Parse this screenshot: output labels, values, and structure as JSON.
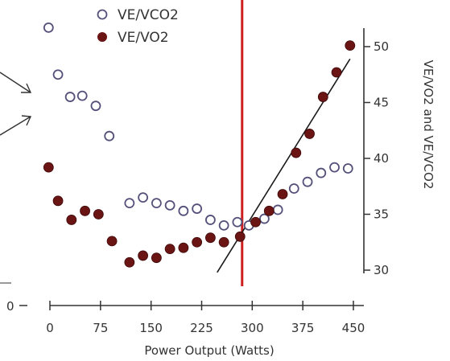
{
  "chart_data": {
    "type": "scatter",
    "title": "",
    "xlabel": "Power Output (Watts)",
    "ylabel": "VE/VO2 and VE/VCO2",
    "xlim": [
      -15,
      470
    ],
    "ylim": [
      28,
      53
    ],
    "x_ticks": [
      0,
      75,
      150,
      225,
      300,
      375,
      450
    ],
    "x_tick_labels": [
      "0",
      "75",
      "150",
      "225",
      "300",
      "375",
      "450"
    ],
    "left_axis_tick_label": "0",
    "y_ticks": [
      30,
      35,
      40,
      45,
      50
    ],
    "y_tick_labels": [
      "30",
      "35",
      "40",
      "45",
      "50"
    ],
    "legend_position": "top",
    "series": [
      {
        "name": "VE/VCO2",
        "marker": "open-circle",
        "color": "#54507a",
        "points": [
          [
            -2,
            51.7
          ],
          [
            12,
            47.5
          ],
          [
            30,
            45.5
          ],
          [
            48,
            45.6
          ],
          [
            68,
            44.7
          ],
          [
            88,
            42
          ],
          [
            118,
            36
          ],
          [
            138,
            36.5
          ],
          [
            158,
            36
          ],
          [
            178,
            35.8
          ],
          [
            198,
            35.3
          ],
          [
            218,
            35.5
          ],
          [
            238,
            34.5
          ],
          [
            258,
            34
          ],
          [
            278,
            34.3
          ],
          [
            295,
            34
          ],
          [
            318,
            34.6
          ],
          [
            338,
            35.4
          ],
          [
            362,
            37.3
          ],
          [
            382,
            37.9
          ],
          [
            402,
            38.7
          ],
          [
            422,
            39.2
          ],
          [
            442,
            39.1
          ]
        ]
      },
      {
        "name": "VE/VO2",
        "marker": "filled-circle",
        "color": "#6b1414",
        "points": [
          [
            -2,
            39.2
          ],
          [
            12,
            36.2
          ],
          [
            32,
            34.5
          ],
          [
            52,
            35.3
          ],
          [
            72,
            35
          ],
          [
            92,
            32.6
          ],
          [
            118,
            30.7
          ],
          [
            138,
            31.3
          ],
          [
            158,
            31.1
          ],
          [
            178,
            31.9
          ],
          [
            198,
            32
          ],
          [
            218,
            32.5
          ],
          [
            238,
            32.9
          ],
          [
            258,
            32.5
          ],
          [
            282,
            33
          ],
          [
            305,
            34.3
          ],
          [
            325,
            35.3
          ],
          [
            345,
            36.8
          ],
          [
            365,
            40.5
          ],
          [
            385,
            42.2
          ],
          [
            405,
            45.5
          ],
          [
            425,
            47.7
          ],
          [
            445,
            50.1
          ]
        ]
      }
    ],
    "trend_line": {
      "color": "#1a1a1a",
      "from": [
        248,
        29.8
      ],
      "to": [
        445,
        48.9
      ]
    },
    "threshold_line": {
      "x": 285,
      "color": "#cc1f1f"
    },
    "annotations": {
      "arrows": 2,
      "color": "#333333"
    }
  }
}
